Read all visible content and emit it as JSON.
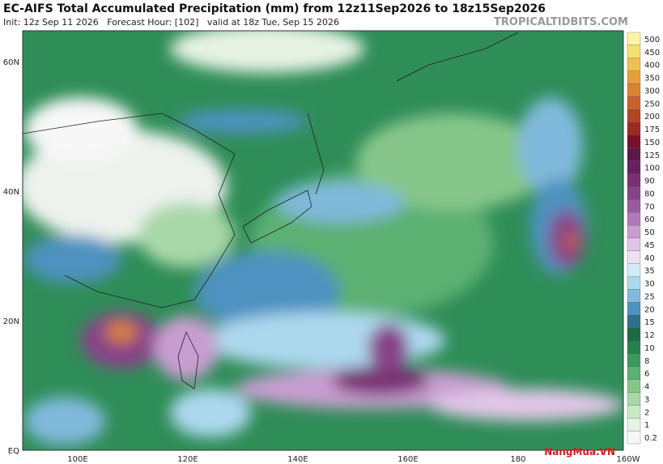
{
  "header": {
    "title": "EC-AIFS Total Accumulated Precipitation (mm) from 12z11Sep2026 to 18z15Sep2026",
    "subtitle": "Init: 12z Sep 11 2026   Forecast Hour: [102]   valid at 18z Tue, Sep 15 2026",
    "site": "TROPICALTIDBITS.COM"
  },
  "map": {
    "lat_labels": [
      "60N",
      "40N",
      "20N",
      "EQ"
    ],
    "lon_labels": [
      "100E",
      "120E",
      "140E",
      "160E",
      "180",
      "160W"
    ]
  },
  "colorbar": {
    "levels": [
      500,
      450,
      400,
      350,
      300,
      250,
      200,
      175,
      150,
      125,
      100,
      90,
      80,
      70,
      60,
      50,
      45,
      40,
      35,
      30,
      25,
      20,
      15,
      12,
      10,
      8,
      6,
      4,
      3,
      2,
      1,
      0.2
    ],
    "colors": [
      "#fff3a8",
      "#f8e070",
      "#f0c050",
      "#e5a03c",
      "#d88232",
      "#c9622a",
      "#b44424",
      "#9c2a22",
      "#7a0e2c",
      "#5c1848",
      "#68205e",
      "#783072",
      "#884288",
      "#9a5aa0",
      "#b07ab8",
      "#c89ed0",
      "#e0c6e6",
      "#ece2f2",
      "#d2ecf7",
      "#acd8ee",
      "#80b9dc",
      "#4e92c0",
      "#2e6f8a",
      "#1d6a44",
      "#24804c",
      "#3a9a5c",
      "#5cb072",
      "#86c68a",
      "#a8d8a8",
      "#c8e8c6",
      "#e6f2e4",
      "#f7f7f7"
    ]
  },
  "watermark": "NangMua.VN"
}
